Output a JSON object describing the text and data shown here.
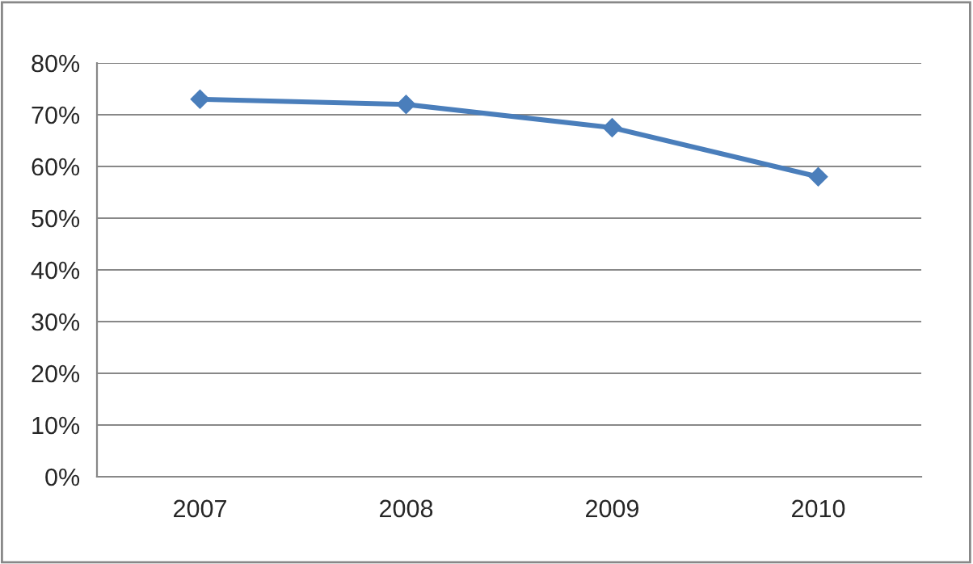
{
  "chart_data": {
    "type": "line",
    "categories": [
      "2007",
      "2008",
      "2009",
      "2010"
    ],
    "series": [
      {
        "color": "#4a7ebb",
        "values": [
          73,
          72,
          67.5,
          58
        ]
      }
    ],
    "ylim": [
      0,
      80
    ],
    "yticks": [
      {
        "value": 0,
        "label": "0%"
      },
      {
        "value": 10,
        "label": "10%"
      },
      {
        "value": 20,
        "label": "20%"
      },
      {
        "value": 30,
        "label": "30%"
      },
      {
        "value": 40,
        "label": "40%"
      },
      {
        "value": 50,
        "label": "50%"
      },
      {
        "value": 60,
        "label": "60%"
      },
      {
        "value": 70,
        "label": "70%"
      },
      {
        "value": 80,
        "label": "80%"
      }
    ],
    "grid": "y",
    "marker": "diamond",
    "line_style": "solid"
  }
}
